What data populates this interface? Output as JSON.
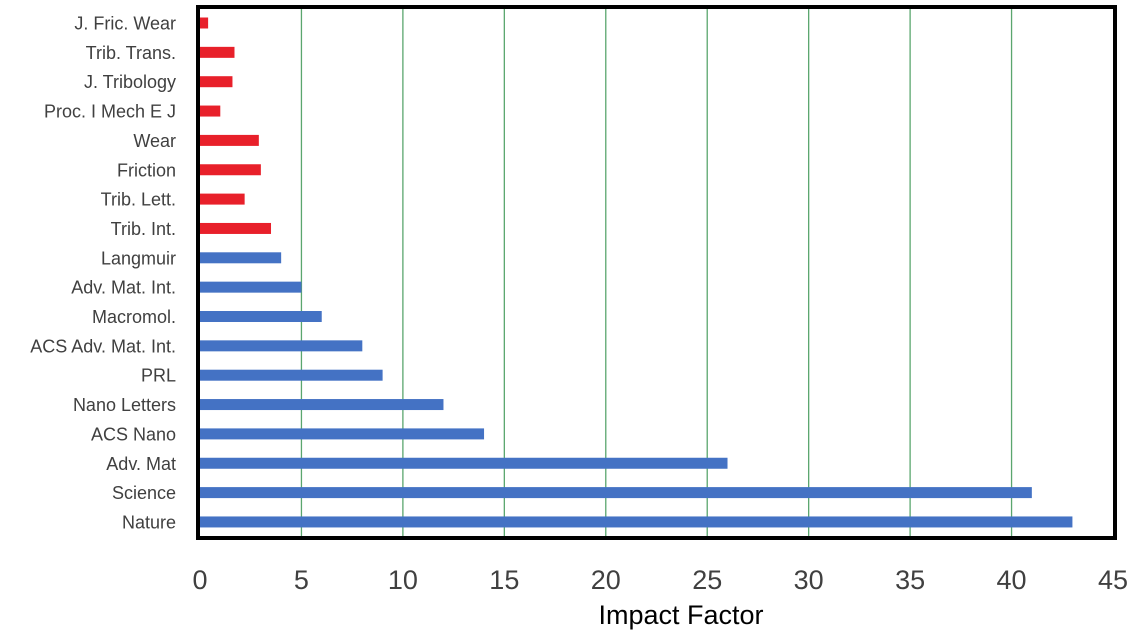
{
  "chart_data": {
    "type": "bar",
    "orientation": "horizontal",
    "title": "",
    "xlabel": "Impact Factor",
    "ylabel": "",
    "xlim": [
      0,
      45
    ],
    "xticks": [
      0,
      5,
      10,
      15,
      20,
      25,
      30,
      35,
      40,
      45
    ],
    "grid": "vertical",
    "legend": "none",
    "categories": [
      "J. Fric. Wear",
      "Trib. Trans.",
      "J. Tribology",
      "Proc. I Mech E J",
      "Wear",
      "Friction",
      "Trib. Lett.",
      "Trib. Int.",
      "Langmuir",
      "Adv. Mat. Int.",
      "Macromol.",
      "ACS Adv. Mat. Int.",
      "PRL",
      "Nano Letters",
      "ACS Nano",
      "Adv. Mat",
      "Science",
      "Nature"
    ],
    "values": [
      0.4,
      1.7,
      1.6,
      1.0,
      2.9,
      3.0,
      2.2,
      3.5,
      4.0,
      5.0,
      6.0,
      8.0,
      9.0,
      12.0,
      14.0,
      26.0,
      41.0,
      43.0
    ],
    "bar_colors": [
      "#e8202a",
      "#e8202a",
      "#e8202a",
      "#e8202a",
      "#e8202a",
      "#e8202a",
      "#e8202a",
      "#e8202a",
      "#4472c4",
      "#4472c4",
      "#4472c4",
      "#4472c4",
      "#4472c4",
      "#4472c4",
      "#4472c4",
      "#4472c4",
      "#4472c4",
      "#4472c4"
    ],
    "colors": {
      "tribology": "#e8202a",
      "general": "#4472c4",
      "gridline": "#5aa66e",
      "frame": "#000000",
      "text": "#404040"
    }
  }
}
